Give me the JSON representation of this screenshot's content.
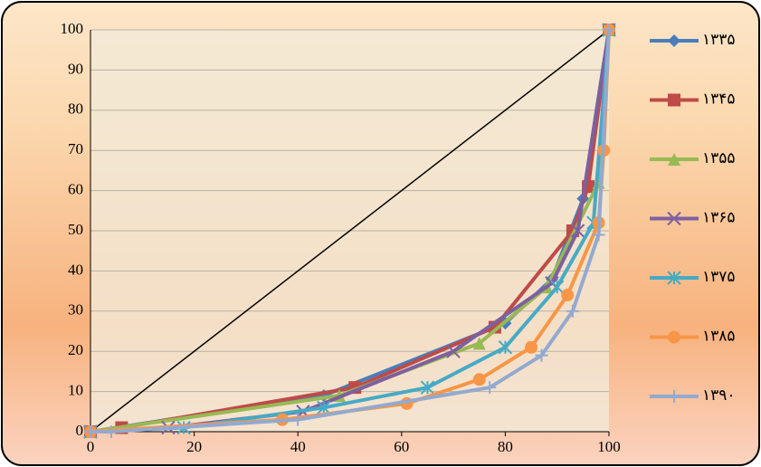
{
  "chart_data": {
    "type": "line",
    "xlim": [
      0,
      100
    ],
    "xticks": [
      0,
      20,
      40,
      60,
      80,
      100
    ],
    "ylim": [
      0,
      100
    ],
    "yticks": [
      0,
      10,
      20,
      30,
      40,
      50,
      60,
      70,
      80,
      90,
      100
    ],
    "grid": true,
    "legend": "right",
    "equality_line": {
      "x": [
        0,
        100
      ],
      "values": [
        0,
        100
      ],
      "color": "#000000"
    },
    "series": [
      {
        "name": "۱۳۳۵",
        "color": "#4a7ebb",
        "marker": "diamond",
        "x": [
          0,
          45,
          80,
          89,
          95,
          100
        ],
        "values": [
          0,
          9,
          27,
          38,
          58,
          100
        ]
      },
      {
        "name": "۱۳۴۵",
        "color": "#be4b48",
        "marker": "square",
        "x": [
          0,
          6,
          51,
          78,
          93,
          96,
          100
        ],
        "values": [
          0,
          1,
          11,
          26,
          50,
          61,
          100
        ]
      },
      {
        "name": "۱۳۵۵",
        "color": "#98b954",
        "marker": "triangle",
        "x": [
          0,
          48,
          75,
          88,
          98,
          100
        ],
        "values": [
          0,
          9,
          22,
          36,
          62,
          100
        ]
      },
      {
        "name": "۱۳۶۵",
        "color": "#7d60a0",
        "marker": "cross",
        "x": [
          0,
          15,
          41,
          70,
          89,
          94,
          100
        ],
        "values": [
          0,
          1,
          5,
          20,
          37,
          50,
          100
        ]
      },
      {
        "name": "۱۳۷۵",
        "color": "#46aac5",
        "marker": "star",
        "x": [
          0,
          18,
          45,
          65,
          80,
          90,
          97,
          100
        ],
        "values": [
          0,
          1,
          6,
          11,
          21,
          36,
          52,
          100
        ]
      },
      {
        "name": "۱۳۸۵",
        "color": "#f79646",
        "marker": "circle",
        "x": [
          0,
          37,
          61,
          75,
          85,
          92,
          98,
          99,
          100
        ],
        "values": [
          0,
          3,
          7,
          13,
          21,
          34,
          52,
          70,
          100
        ]
      },
      {
        "name": "۱۳۹۰",
        "color": "#93a9cf",
        "marker": "plus",
        "x": [
          0,
          4,
          40,
          77,
          87,
          93,
          98,
          100
        ],
        "values": [
          0,
          0,
          3,
          11,
          19,
          30,
          49,
          100
        ]
      }
    ]
  }
}
